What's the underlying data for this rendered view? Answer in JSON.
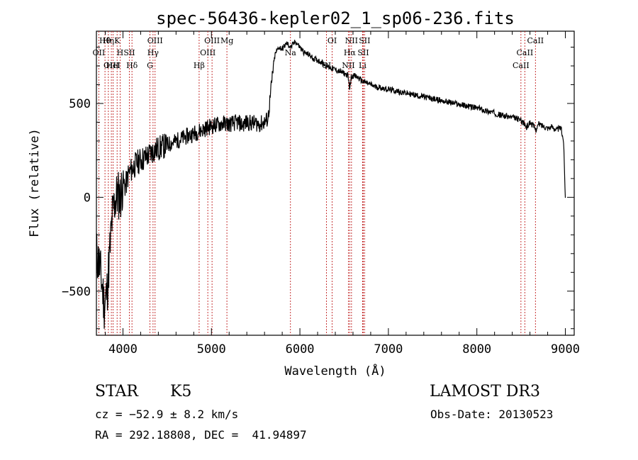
{
  "chart_data": {
    "type": "line",
    "title": "spec-56436-kepler02_1_sp06-236.fits",
    "xlabel": "Wavelength (Å)",
    "ylabel": "Flux (relative)",
    "xlim": [
      3700,
      9100
    ],
    "ylim": [
      -735,
      885
    ],
    "xticks": [
      {
        "v": 4000,
        "label": "4000"
      },
      {
        "v": 5000,
        "label": "5000"
      },
      {
        "v": 6000,
        "label": "6000"
      },
      {
        "v": 7000,
        "label": "7000"
      },
      {
        "v": 8000,
        "label": "8000"
      },
      {
        "v": 9000,
        "label": "9000"
      }
    ],
    "yticks": [
      {
        "v": -500,
        "label": "−500"
      },
      {
        "v": 0,
        "label": "0"
      },
      {
        "v": 500,
        "label": "500"
      }
    ],
    "series": [
      {
        "name": "flux",
        "x": [
          3700,
          3730,
          3760,
          3790,
          3820,
          3850,
          3880,
          3910,
          3940,
          3970,
          4000,
          4030,
          4060,
          4100,
          4150,
          4200,
          4250,
          4300,
          4350,
          4400,
          4450,
          4500,
          4550,
          4600,
          4650,
          4700,
          4750,
          4800,
          4850,
          4900,
          4950,
          5000,
          5050,
          5100,
          5150,
          5200,
          5250,
          5300,
          5350,
          5400,
          5450,
          5500,
          5550,
          5600,
          5640,
          5680,
          5700,
          5720,
          5760,
          5800,
          5850,
          5900,
          5950,
          6000,
          6050,
          6100,
          6150,
          6200,
          6250,
          6300,
          6350,
          6400,
          6450,
          6500,
          6540,
          6563,
          6580,
          6600,
          6650,
          6700,
          6750,
          6800,
          6850,
          6900,
          6950,
          7000,
          7050,
          7100,
          7150,
          7200,
          7250,
          7300,
          7350,
          7400,
          7450,
          7500,
          7550,
          7600,
          7650,
          7700,
          7750,
          7800,
          7850,
          7900,
          7950,
          8000,
          8050,
          8100,
          8150,
          8200,
          8250,
          8300,
          8350,
          8400,
          8450,
          8500,
          8540,
          8560,
          8600,
          8640,
          8665,
          8700,
          8750,
          8800,
          8850,
          8900,
          8950,
          8980,
          9000
        ],
        "y": [
          -300,
          -350,
          -450,
          -580,
          -500,
          -300,
          -100,
          -20,
          20,
          0,
          80,
          60,
          120,
          150,
          180,
          200,
          210,
          230,
          250,
          260,
          270,
          280,
          290,
          300,
          310,
          320,
          330,
          340,
          350,
          360,
          370,
          380,
          385,
          390,
          395,
          390,
          395,
          400,
          385,
          400,
          395,
          395,
          390,
          400,
          420,
          600,
          700,
          760,
          800,
          790,
          820,
          800,
          830,
          800,
          770,
          760,
          740,
          730,
          720,
          700,
          690,
          680,
          670,
          660,
          650,
          580,
          640,
          650,
          640,
          620,
          610,
          600,
          590,
          585,
          580,
          575,
          570,
          565,
          560,
          555,
          550,
          545,
          540,
          535,
          530,
          525,
          520,
          515,
          510,
          505,
          500,
          495,
          490,
          485,
          480,
          475,
          470,
          460,
          455,
          450,
          440,
          435,
          430,
          425,
          420,
          410,
          390,
          370,
          400,
          380,
          360,
          390,
          380,
          370,
          375,
          360,
          370,
          300,
          0
        ]
      }
    ],
    "lines": [
      {
        "label": "Hθ",
        "x": 3797
      },
      {
        "label": "OII",
        "x": 3727
      },
      {
        "label": "OIII",
        "x": 3869
      },
      {
        "label": "K",
        "x": 3934
      },
      {
        "label": "H",
        "x": 3968
      },
      {
        "label": "HeI",
        "x": 3889
      },
      {
        "label": "Hη",
        "x": 3835
      },
      {
        "label": "SII",
        "x": 4072
      },
      {
        "label": "Hδ",
        "x": 4102
      },
      {
        "label": "OIII",
        "x": 4363
      },
      {
        "label": "Hγ",
        "x": 4340
      },
      {
        "label": "G",
        "x": 4305
      },
      {
        "label": "OIII",
        "x": 5007
      },
      {
        "label": "OIII",
        "x": 4959
      },
      {
        "label": "Hβ",
        "x": 4861
      },
      {
        "label": "Mg",
        "x": 5175
      },
      {
        "label": "Na",
        "x": 5893
      },
      {
        "label": "OI",
        "x": 6300
      },
      {
        "label": "OI",
        "x": 6364
      },
      {
        "label": "Hα",
        "x": 6563
      },
      {
        "label": "NII",
        "x": 6548
      },
      {
        "label": "NII",
        "x": 6583
      },
      {
        "label": "SII",
        "x": 6716
      },
      {
        "label": "Li",
        "x": 6708
      },
      {
        "label": "SII",
        "x": 6731
      },
      {
        "label": "CaII",
        "x": 8542
      },
      {
        "label": "CaII",
        "x": 8498
      },
      {
        "label": "CaII",
        "x": 8662
      }
    ]
  },
  "info": {
    "class": "STAR",
    "subclass": "K5",
    "survey": "LAMOST DR3",
    "cz": "cz = −52.9 ± 8.2 km/s",
    "obs_date": "Obs-Date: 20130523",
    "coords": "RA = 292.18808, DEC =  41.94897"
  }
}
